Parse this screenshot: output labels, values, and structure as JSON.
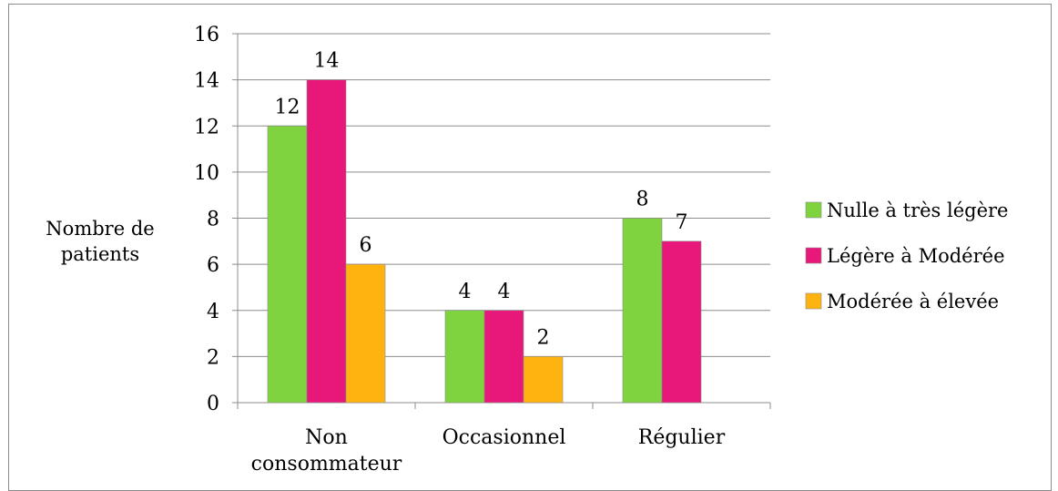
{
  "chart_data": {
    "type": "bar",
    "categories": [
      [
        "Non",
        "consommateur"
      ],
      [
        "Occasionnel"
      ],
      [
        "Régulier"
      ]
    ],
    "series": [
      {
        "name": "Nulle à très légère",
        "values": [
          12,
          4,
          8
        ],
        "color": "#7ED33F"
      },
      {
        "name": "Légère à Modérée",
        "values": [
          14,
          4,
          7
        ],
        "color": "#E8187A"
      },
      {
        "name": "Modérée à élevée",
        "values": [
          6,
          2,
          null
        ],
        "color": "#FFB30F"
      }
    ],
    "ylabel": [
      "Nombre de",
      "patients"
    ],
    "ylim": [
      0,
      16
    ],
    "yticks": [
      0,
      2,
      4,
      6,
      8,
      10,
      12,
      14,
      16
    ],
    "grid": true,
    "legend_position": "right",
    "data_labels": true
  }
}
